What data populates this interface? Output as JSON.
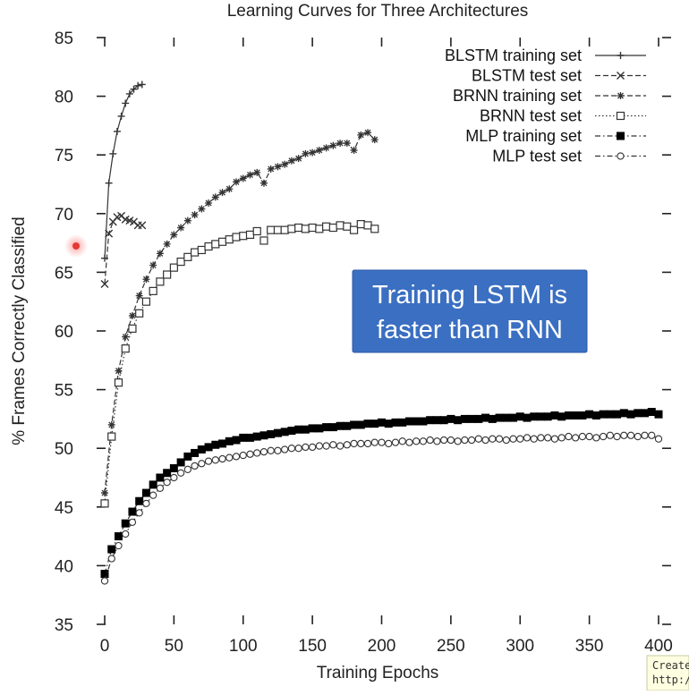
{
  "chart_data": {
    "type": "line",
    "title": "Learning Curves for Three Architectures",
    "xlabel": "Training Epochs",
    "ylabel": "% Frames Correctly Classified",
    "xlim": [
      0,
      400
    ],
    "ylim": [
      35,
      85
    ],
    "xticks": [
      0,
      50,
      100,
      150,
      200,
      250,
      300,
      350,
      400
    ],
    "yticks": [
      35,
      40,
      45,
      50,
      55,
      60,
      65,
      70,
      75,
      80,
      85
    ],
    "grid": false,
    "legend_position": "top-right",
    "series": [
      {
        "name": "BLSTM training set",
        "marker": "plus",
        "dash": "solid",
        "x": [
          0,
          3,
          6,
          9,
          12,
          15,
          18,
          21,
          24,
          27
        ],
        "y": [
          66.2,
          72.6,
          75.1,
          77.0,
          78.3,
          79.4,
          80.2,
          80.6,
          80.9,
          81.0
        ]
      },
      {
        "name": "BLSTM test set",
        "marker": "x",
        "dash": "dashed",
        "x": [
          0,
          3,
          6,
          9,
          12,
          15,
          18,
          21,
          24,
          27
        ],
        "y": [
          64.0,
          68.3,
          69.3,
          69.7,
          69.8,
          69.5,
          69.4,
          69.3,
          69.0,
          69.0
        ]
      },
      {
        "name": "BRNN training set",
        "marker": "star",
        "dash": "dashed",
        "x": [
          0,
          5,
          10,
          15,
          20,
          25,
          30,
          35,
          40,
          45,
          50,
          55,
          60,
          65,
          70,
          75,
          80,
          85,
          90,
          95,
          100,
          105,
          110,
          115,
          120,
          125,
          130,
          135,
          140,
          145,
          150,
          155,
          160,
          165,
          170,
          175,
          180,
          185,
          190,
          195
        ],
        "y": [
          46.2,
          52.0,
          56.6,
          59.5,
          61.3,
          63.0,
          64.4,
          65.6,
          66.6,
          67.4,
          68.2,
          68.8,
          69.4,
          69.9,
          70.4,
          70.9,
          71.4,
          71.8,
          72.1,
          72.7,
          73.0,
          73.3,
          73.5,
          72.6,
          73.8,
          74.0,
          74.2,
          74.5,
          74.7,
          75.1,
          75.2,
          75.4,
          75.6,
          75.8,
          76.0,
          76.0,
          75.4,
          76.7,
          76.9,
          76.3
        ]
      },
      {
        "name": "BRNN test set",
        "marker": "square-open",
        "dash": "dotted",
        "x": [
          0,
          5,
          10,
          15,
          20,
          25,
          30,
          35,
          40,
          45,
          50,
          55,
          60,
          65,
          70,
          75,
          80,
          85,
          90,
          95,
          100,
          105,
          110,
          115,
          120,
          125,
          130,
          135,
          140,
          145,
          150,
          155,
          160,
          165,
          170,
          175,
          180,
          185,
          190,
          195
        ],
        "y": [
          45.3,
          51.0,
          55.6,
          58.5,
          60.2,
          61.5,
          62.5,
          63.4,
          64.2,
          64.8,
          65.4,
          65.9,
          66.3,
          66.7,
          66.9,
          67.2,
          67.4,
          67.6,
          67.8,
          68.0,
          68.1,
          68.2,
          68.5,
          67.7,
          68.6,
          68.6,
          68.6,
          68.7,
          68.8,
          68.7,
          68.8,
          68.7,
          68.9,
          68.8,
          69.0,
          68.9,
          68.6,
          69.1,
          69.0,
          68.7
        ]
      },
      {
        "name": "MLP training set",
        "marker": "square-filled",
        "dash": "dashdot",
        "x": [
          0,
          5,
          10,
          15,
          20,
          25,
          30,
          35,
          40,
          45,
          50,
          55,
          60,
          65,
          70,
          75,
          80,
          85,
          90,
          95,
          100,
          105,
          110,
          115,
          120,
          125,
          130,
          135,
          140,
          145,
          150,
          155,
          160,
          165,
          170,
          175,
          180,
          185,
          190,
          195,
          200,
          205,
          210,
          215,
          220,
          225,
          230,
          235,
          240,
          245,
          250,
          255,
          260,
          265,
          270,
          275,
          280,
          285,
          290,
          295,
          300,
          305,
          310,
          315,
          320,
          325,
          330,
          335,
          340,
          345,
          350,
          355,
          360,
          365,
          370,
          375,
          380,
          385,
          390,
          395,
          400
        ],
        "y": [
          39.3,
          41.4,
          42.5,
          43.6,
          44.6,
          45.5,
          46.2,
          46.9,
          47.5,
          47.9,
          48.3,
          48.8,
          49.3,
          49.6,
          49.9,
          50.1,
          50.3,
          50.4,
          50.6,
          50.7,
          50.9,
          50.9,
          51.0,
          51.1,
          51.2,
          51.3,
          51.4,
          51.5,
          51.6,
          51.6,
          51.7,
          51.7,
          51.8,
          51.8,
          51.9,
          51.9,
          52.0,
          52.0,
          52.1,
          52.1,
          52.2,
          52.1,
          52.2,
          52.2,
          52.3,
          52.3,
          52.3,
          52.4,
          52.4,
          52.4,
          52.5,
          52.4,
          52.5,
          52.5,
          52.5,
          52.6,
          52.5,
          52.6,
          52.6,
          52.6,
          52.7,
          52.6,
          52.7,
          52.7,
          52.7,
          52.8,
          52.7,
          52.8,
          52.8,
          52.8,
          52.9,
          52.8,
          52.9,
          52.9,
          52.9,
          53.0,
          52.9,
          53.0,
          53.0,
          53.1,
          52.9
        ]
      },
      {
        "name": "MLP test set",
        "marker": "circle-open",
        "dash": "dashdot",
        "x": [
          0,
          5,
          10,
          15,
          20,
          25,
          30,
          35,
          40,
          45,
          50,
          55,
          60,
          65,
          70,
          75,
          80,
          85,
          90,
          95,
          100,
          105,
          110,
          115,
          120,
          125,
          130,
          135,
          140,
          145,
          150,
          155,
          160,
          165,
          170,
          175,
          180,
          185,
          190,
          195,
          200,
          205,
          210,
          215,
          220,
          225,
          230,
          235,
          240,
          245,
          250,
          255,
          260,
          265,
          270,
          275,
          280,
          285,
          290,
          295,
          300,
          305,
          310,
          315,
          320,
          325,
          330,
          335,
          340,
          345,
          350,
          355,
          360,
          365,
          370,
          375,
          380,
          385,
          390,
          395,
          400
        ],
        "y": [
          38.7,
          40.6,
          41.7,
          42.7,
          43.7,
          44.5,
          45.3,
          46.0,
          46.6,
          47.1,
          47.5,
          47.9,
          48.2,
          48.5,
          48.7,
          48.9,
          49.0,
          49.1,
          49.2,
          49.3,
          49.4,
          49.5,
          49.6,
          49.7,
          49.8,
          49.8,
          49.9,
          50.0,
          50.0,
          50.1,
          50.1,
          50.2,
          50.2,
          50.3,
          50.2,
          50.3,
          50.4,
          50.4,
          50.4,
          50.5,
          50.5,
          50.4,
          50.5,
          50.6,
          50.5,
          50.6,
          50.6,
          50.7,
          50.6,
          50.7,
          50.7,
          50.6,
          50.7,
          50.7,
          50.8,
          50.7,
          50.8,
          50.8,
          50.7,
          50.8,
          50.8,
          50.9,
          50.8,
          50.9,
          50.9,
          50.8,
          50.9,
          51.0,
          50.9,
          51.0,
          51.0,
          50.9,
          51.0,
          51.1,
          51.0,
          51.1,
          51.1,
          51.0,
          51.1,
          51.1,
          50.8
        ]
      }
    ],
    "annotations": [
      {
        "text": [
          "Training LSTM is",
          "faster than RNN"
        ],
        "background": "#3a6fc2"
      }
    ]
  },
  "overlay": {
    "tooltip_lines": [
      "Create",
      "http:/"
    ]
  },
  "colors": {
    "axis": "#222222",
    "series_stroke": "#333333",
    "callout_bg": "#3a6fc2",
    "callout_border": "#2d5aa5",
    "cursor_dot": "#e53935",
    "tooltip_bg": "#ffffe1"
  }
}
